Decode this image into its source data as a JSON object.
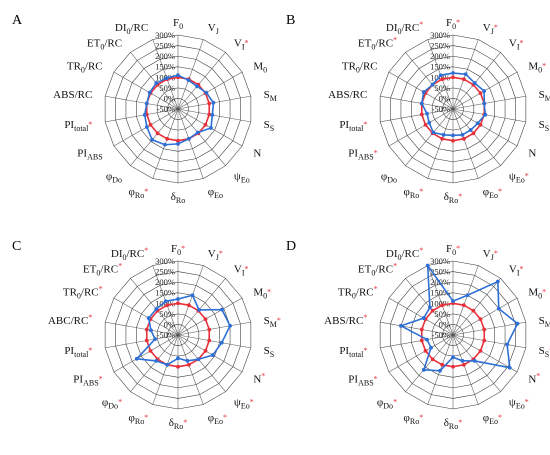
{
  "colors": {
    "control": "#e8303a",
    "treatment": "#2e6fd6",
    "star": "#e8303a",
    "grid": "#333333",
    "spoke": "#555555"
  },
  "chart_data": [
    {
      "panel": "A",
      "type": "radar",
      "ticks": [
        "300%",
        "250%",
        "200%",
        "150%",
        "100%",
        "50%",
        "0%",
        "-50%"
      ],
      "tick_values": [
        300,
        250,
        200,
        150,
        100,
        50,
        0,
        -50
      ],
      "rlim": [
        -50,
        300
      ],
      "axes": [
        {
          "base": "F",
          "sub": "0",
          "star": false
        },
        {
          "base": "V",
          "sub": "J",
          "star": false
        },
        {
          "base": "V",
          "sub": "I",
          "star": true
        },
        {
          "base": "M",
          "sub": "0",
          "star": false
        },
        {
          "base": "S",
          "sub": "M",
          "star": false
        },
        {
          "base": "S",
          "sub": "S",
          "star": false
        },
        {
          "base": "N",
          "sub": "",
          "star": false
        },
        {
          "base": "ψ",
          "sub": "Eo",
          "star": false
        },
        {
          "base": "φ",
          "sub": "Eo",
          "star": false
        },
        {
          "base": "δ",
          "sub": "Ro",
          "star": false
        },
        {
          "base": "φ",
          "sub": "Ro",
          "star": true
        },
        {
          "base": "φ",
          "sub": "Do",
          "star": false
        },
        {
          "base": "PI",
          "sub": "ABS",
          "star": false
        },
        {
          "base": "PI",
          "sub": "total",
          "star": true
        },
        {
          "base": "ABS/RC",
          "sub": "",
          "star": false
        },
        {
          "base": "TR",
          "sub": "0",
          "suffix": "/RC",
          "star": false
        },
        {
          "base": "ET",
          "sub": "0",
          "suffix": "/RC",
          "star": false
        },
        {
          "base": "DI",
          "sub": "0",
          "suffix": "/RC",
          "star": false
        }
      ],
      "series": [
        {
          "values": [
            100,
            100,
            100,
            100,
            100,
            100,
            100,
            100,
            100,
            100,
            100,
            100,
            100,
            100,
            100,
            100,
            100,
            100
          ]
        },
        {
          "values": [
            110,
            95,
            90,
            105,
            120,
            115,
            130,
            95,
            100,
            115,
            130,
            140,
            120,
            110,
            100,
            105,
            110,
            105
          ]
        }
      ]
    },
    {
      "panel": "B",
      "type": "radar",
      "ticks": [
        "300%",
        "250%",
        "200%",
        "150%",
        "100%",
        "50%",
        "0%",
        "-50%"
      ],
      "tick_values": [
        300,
        250,
        200,
        150,
        100,
        50,
        0,
        -50
      ],
      "rlim": [
        -50,
        300
      ],
      "axes": [
        {
          "base": "F",
          "sub": "0",
          "star": true
        },
        {
          "base": "V",
          "sub": "J",
          "star": true
        },
        {
          "base": "V",
          "sub": "I",
          "star": true
        },
        {
          "base": "M",
          "sub": "0",
          "star": true
        },
        {
          "base": "S",
          "sub": "M",
          "star": false
        },
        {
          "base": "S",
          "sub": "S",
          "star": false
        },
        {
          "base": "N",
          "sub": "",
          "star": false
        },
        {
          "base": "ψ",
          "sub": "Eo",
          "star": true
        },
        {
          "base": "φ",
          "sub": "Eo",
          "star": true
        },
        {
          "base": "δ",
          "sub": "Ro",
          "star": true
        },
        {
          "base": "φ",
          "sub": "Ro",
          "star": true
        },
        {
          "base": "φ",
          "sub": "Do",
          "star": false
        },
        {
          "base": "PI",
          "sub": "ABS",
          "star": true
        },
        {
          "base": "PI",
          "sub": "total",
          "star": true
        },
        {
          "base": "ABS/RC",
          "sub": "",
          "star": false
        },
        {
          "base": "TR",
          "sub": "0",
          "suffix": "/RC",
          "star": false
        },
        {
          "base": "ET",
          "sub": "0",
          "suffix": "/RC",
          "star": true
        },
        {
          "base": "DI",
          "sub": "0",
          "suffix": "/RC",
          "star": true
        }
      ],
      "series": [
        {
          "values": [
            100,
            100,
            100,
            100,
            100,
            100,
            100,
            100,
            100,
            100,
            100,
            100,
            100,
            100,
            100,
            100,
            100,
            100
          ]
        },
        {
          "values": [
            120,
            125,
            110,
            120,
            100,
            105,
            85,
            80,
            80,
            75,
            80,
            95,
            80,
            75,
            100,
            110,
            100,
            120
          ]
        }
      ]
    },
    {
      "panel": "C",
      "type": "radar",
      "ticks": [
        "300%",
        "250%",
        "200%",
        "150%",
        "100%",
        "50%",
        "0%",
        "-50%"
      ],
      "tick_values": [
        300,
        250,
        200,
        150,
        100,
        50,
        0,
        -50
      ],
      "rlim": [
        -50,
        300
      ],
      "axes": [
        {
          "base": "F",
          "sub": "0",
          "star": true
        },
        {
          "base": "V",
          "sub": "J",
          "star": true
        },
        {
          "base": "V",
          "sub": "I",
          "star": true
        },
        {
          "base": "M",
          "sub": "0",
          "star": true
        },
        {
          "base": "S",
          "sub": "M",
          "star": true
        },
        {
          "base": "S",
          "sub": "S",
          "star": false
        },
        {
          "base": "N",
          "sub": "",
          "star": true
        },
        {
          "base": "ψ",
          "sub": "Eo",
          "star": true
        },
        {
          "base": "φ",
          "sub": "Eo",
          "star": true
        },
        {
          "base": "δ",
          "sub": "Ro",
          "star": true
        },
        {
          "base": "φ",
          "sub": "Ro",
          "star": true
        },
        {
          "base": "φ",
          "sub": "Do",
          "star": true
        },
        {
          "base": "PI",
          "sub": "ABS",
          "star": true
        },
        {
          "base": "PI",
          "sub": "total",
          "star": true
        },
        {
          "base": "ABC/RC",
          "sub": "",
          "star": true
        },
        {
          "base": "TR",
          "sub": "0",
          "suffix": "/RC",
          "star": true
        },
        {
          "base": "ET",
          "sub": "0",
          "suffix": "/RC",
          "star": true
        },
        {
          "base": "DI",
          "sub": "0",
          "suffix": "/RC",
          "star": true
        }
      ],
      "series": [
        {
          "values": [
            100,
            100,
            100,
            100,
            100,
            100,
            100,
            100,
            100,
            100,
            100,
            100,
            100,
            100,
            100,
            100,
            100,
            100
          ]
        },
        {
          "values": [
            120,
            150,
            105,
            190,
            200,
            160,
            140,
            100,
            80,
            60,
            100,
            110,
            175,
            60,
            80,
            110,
            110,
            120
          ]
        }
      ]
    },
    {
      "panel": "D",
      "type": "radar",
      "ticks": [
        "300%",
        "250%",
        "200%",
        "150%",
        "100%",
        "50%",
        "0%",
        "-50%"
      ],
      "tick_values": [
        300,
        250,
        200,
        150,
        100,
        50,
        0,
        -50
      ],
      "rlim": [
        -50,
        300
      ],
      "axes": [
        {
          "base": "F",
          "sub": "0",
          "star": true
        },
        {
          "base": "V",
          "sub": "J",
          "star": true
        },
        {
          "base": "V",
          "sub": "I",
          "star": true
        },
        {
          "base": "M",
          "sub": "0",
          "star": true
        },
        {
          "base": "S",
          "sub": "M",
          "star": true
        },
        {
          "base": "S",
          "sub": "S",
          "star": true
        },
        {
          "base": "N",
          "sub": "",
          "star": true
        },
        {
          "base": "ψ",
          "sub": "Eo",
          "star": true
        },
        {
          "base": "φ",
          "sub": "Eo",
          "star": true
        },
        {
          "base": "δ",
          "sub": "Ro",
          "star": true
        },
        {
          "base": "φ",
          "sub": "Ro",
          "star": true
        },
        {
          "base": "φ",
          "sub": "Do",
          "star": true
        },
        {
          "base": "PI",
          "sub": "ABS",
          "star": true
        },
        {
          "base": "PI",
          "sub": "total",
          "star": true
        },
        {
          "base": "ABS/RC",
          "sub": "",
          "star": true
        },
        {
          "base": "TR",
          "sub": "0",
          "suffix": "/RC",
          "star": true
        },
        {
          "base": "ET",
          "sub": "0",
          "suffix": "/RC",
          "star": true
        },
        {
          "base": "DI",
          "sub": "0",
          "suffix": "/RC",
          "star": true
        }
      ],
      "series": [
        {
          "values": [
            100,
            100,
            100,
            100,
            100,
            100,
            100,
            100,
            100,
            100,
            100,
            100,
            100,
            100,
            100,
            100,
            100,
            100
          ]
        },
        {
          "values": [
            110,
            150,
            280,
            200,
            260,
            210,
            260,
            110,
            80,
            55,
            130,
            165,
            70,
            75,
            200,
            110,
            120,
            300
          ]
        }
      ]
    }
  ]
}
